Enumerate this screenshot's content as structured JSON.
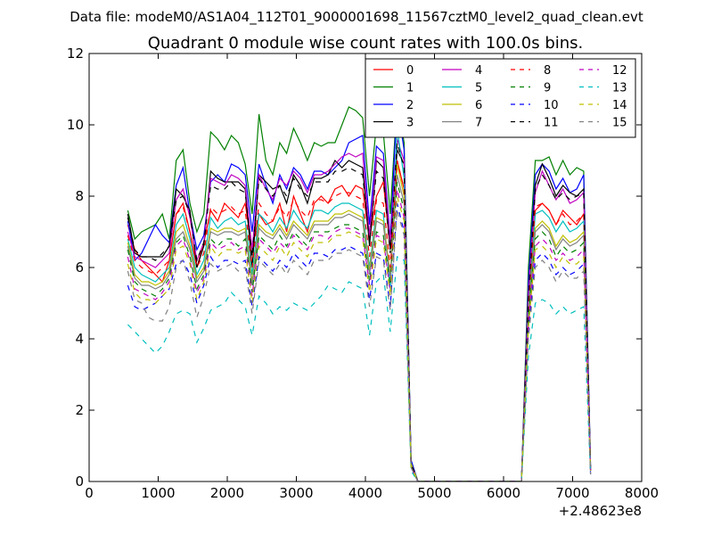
{
  "figure": {
    "suptitle": "Data file: modeM0/AS1A04_112T01_9000001698_11567cztM0_level2_quad_clean.evt"
  },
  "chart_data": {
    "type": "line",
    "title": "Quadrant 0 module wise count rates with 100.0s bins.",
    "xlabel": "",
    "ylabel": "",
    "x_offset_label": "+2.48623e8",
    "xlim": [
      0,
      8000
    ],
    "ylim": [
      0,
      12
    ],
    "x_ticks": [
      0,
      1000,
      2000,
      3000,
      4000,
      5000,
      6000,
      7000,
      8000
    ],
    "y_ticks": [
      0,
      2,
      4,
      6,
      8,
      10,
      12
    ],
    "grid": false,
    "legend": {
      "placement": "top-right",
      "ncol": 4
    },
    "x": [
      560,
      660,
      760,
      860,
      960,
      1060,
      1160,
      1260,
      1360,
      1460,
      1560,
      1660,
      1760,
      1860,
      1960,
      2060,
      2160,
      2260,
      2360,
      2460,
      2560,
      2660,
      2760,
      2860,
      2960,
      3060,
      3160,
      3260,
      3360,
      3460,
      3560,
      3660,
      3760,
      3860,
      3960,
      4060,
      4160,
      4260,
      4360,
      4460,
      4560,
      4660,
      4760,
      4860,
      4960,
      5060,
      5160,
      5260,
      5360,
      5460,
      5560,
      5660,
      5760,
      5860,
      5960,
      6060,
      6160,
      6260,
      6360,
      6460,
      6560,
      6660,
      6760,
      6860,
      6960,
      7060,
      7160,
      7260
    ],
    "series": [
      {
        "name": "0",
        "color": "#ff0000",
        "dash": "solid",
        "values": [
          7.2,
          6.5,
          6.2,
          6.0,
          5.8,
          5.6,
          6.2,
          7.5,
          7.8,
          7.0,
          6.0,
          6.7,
          7.6,
          7.3,
          7.8,
          7.6,
          7.4,
          7.8,
          6.5,
          7.5,
          7.2,
          7.3,
          7.8,
          7.0,
          8.0,
          7.5,
          7.0,
          7.8,
          8.0,
          7.8,
          8.2,
          8.3,
          8.0,
          8.3,
          8.2,
          6.8,
          8.0,
          8.4,
          6.5,
          9.0,
          8.2,
          0.5,
          0.0,
          0.0,
          0.0,
          0.0,
          0.0,
          0.0,
          0.0,
          0.0,
          0.0,
          0.0,
          0.0,
          0.0,
          0.0,
          0.0,
          0.0,
          0.0,
          5.0,
          7.6,
          7.8,
          7.6,
          7.2,
          7.6,
          7.4,
          7.2,
          7.5,
          0.3
        ]
      },
      {
        "name": "1",
        "color": "#008000",
        "dash": "solid",
        "values": [
          7.6,
          6.8,
          7.0,
          7.1,
          7.2,
          7.5,
          6.8,
          9.0,
          9.3,
          7.8,
          7.0,
          7.5,
          9.8,
          9.6,
          9.3,
          9.7,
          9.5,
          8.9,
          7.5,
          10.3,
          9.0,
          8.6,
          9.5,
          9.2,
          9.9,
          9.5,
          9.0,
          9.5,
          9.4,
          9.5,
          9.5,
          10.0,
          10.5,
          10.4,
          10.2,
          8.0,
          10.0,
          9.8,
          7.5,
          10.7,
          9.5,
          0.6,
          0.0,
          0.0,
          0.0,
          0.0,
          0.0,
          0.0,
          0.0,
          0.0,
          0.0,
          0.0,
          0.0,
          0.0,
          0.0,
          0.0,
          0.0,
          0.0,
          6.0,
          9.0,
          9.0,
          9.1,
          8.6,
          9.0,
          8.6,
          8.8,
          8.7,
          0.4
        ]
      },
      {
        "name": "2",
        "color": "#0000ff",
        "dash": "solid",
        "values": [
          7.3,
          6.2,
          6.4,
          6.8,
          7.2,
          6.9,
          6.7,
          8.3,
          8.8,
          7.5,
          6.5,
          6.9,
          8.4,
          8.6,
          8.4,
          8.9,
          8.8,
          8.6,
          7.0,
          8.9,
          8.3,
          7.8,
          8.6,
          8.2,
          8.8,
          8.6,
          8.2,
          8.7,
          8.7,
          8.6,
          8.8,
          9.0,
          9.5,
          9.6,
          9.7,
          7.2,
          9.4,
          9.2,
          6.8,
          10.6,
          9.3,
          0.6,
          0.0,
          0.0,
          0.0,
          0.0,
          0.0,
          0.0,
          0.0,
          0.0,
          0.0,
          0.0,
          0.0,
          0.0,
          0.0,
          0.0,
          0.0,
          0.0,
          5.6,
          8.6,
          8.9,
          8.7,
          8.2,
          8.5,
          8.1,
          8.2,
          8.6,
          0.4
        ]
      },
      {
        "name": "3",
        "color": "#000000",
        "dash": "solid",
        "values": [
          7.5,
          6.4,
          6.3,
          6.3,
          6.3,
          6.3,
          6.6,
          8.2,
          8.0,
          7.6,
          6.0,
          6.6,
          8.7,
          8.5,
          8.4,
          8.4,
          8.4,
          8.2,
          6.0,
          8.6,
          8.4,
          8.2,
          8.3,
          7.8,
          8.6,
          8.3,
          7.8,
          8.5,
          8.5,
          8.6,
          9.0,
          8.8,
          9.0,
          8.9,
          8.8,
          6.6,
          9.0,
          8.8,
          6.5,
          9.3,
          8.9,
          0.5,
          0.0,
          0.0,
          0.0,
          0.0,
          0.0,
          0.0,
          0.0,
          0.0,
          0.0,
          0.0,
          0.0,
          0.0,
          0.0,
          0.0,
          0.0,
          0.0,
          5.2,
          8.3,
          8.9,
          8.5,
          8.0,
          8.3,
          8.1,
          8.0,
          8.2,
          0.3
        ]
      },
      {
        "name": "4",
        "color": "#c000c0",
        "dash": "solid",
        "values": [
          7.0,
          6.3,
          6.2,
          6.1,
          6.0,
          6.2,
          6.4,
          7.9,
          8.2,
          7.4,
          6.2,
          6.7,
          8.5,
          8.4,
          8.3,
          8.6,
          8.5,
          8.3,
          6.5,
          8.6,
          8.2,
          7.9,
          8.5,
          8.3,
          8.7,
          8.5,
          8.1,
          8.6,
          8.6,
          8.7,
          8.9,
          9.1,
          9.2,
          9.1,
          9.2,
          6.9,
          9.1,
          9.0,
          6.7,
          9.6,
          9.0,
          0.5,
          0.0,
          0.0,
          0.0,
          0.0,
          0.0,
          0.0,
          0.0,
          0.0,
          0.0,
          0.0,
          0.0,
          0.0,
          0.0,
          0.0,
          0.0,
          0.0,
          5.3,
          8.1,
          8.7,
          8.3,
          7.9,
          8.2,
          7.8,
          7.9,
          8.1,
          0.3
        ]
      },
      {
        "name": "5",
        "color": "#00bfbf",
        "dash": "solid",
        "values": [
          6.8,
          6.0,
          5.8,
          5.7,
          5.6,
          5.8,
          6.0,
          7.2,
          7.5,
          6.8,
          5.8,
          6.2,
          7.4,
          7.1,
          7.3,
          7.4,
          7.2,
          7.3,
          5.8,
          7.5,
          7.3,
          7.0,
          7.4,
          7.1,
          7.6,
          7.3,
          7.1,
          7.6,
          7.6,
          7.5,
          7.7,
          7.8,
          7.8,
          7.7,
          7.6,
          6.0,
          7.6,
          7.5,
          5.4,
          9.9,
          8.5,
          0.5,
          0.0,
          0.0,
          0.0,
          0.0,
          0.0,
          0.0,
          0.0,
          0.0,
          0.0,
          0.0,
          0.0,
          0.0,
          0.0,
          0.0,
          0.0,
          0.0,
          4.8,
          7.5,
          7.6,
          7.4,
          7.0,
          7.3,
          7.0,
          7.1,
          7.3,
          0.3
        ]
      },
      {
        "name": "6",
        "color": "#bfbf00",
        "dash": "solid",
        "values": [
          6.7,
          5.8,
          5.6,
          5.6,
          5.5,
          5.6,
          5.9,
          7.0,
          7.2,
          6.6,
          5.7,
          6.0,
          7.1,
          7.0,
          7.1,
          7.1,
          7.0,
          7.1,
          5.6,
          7.2,
          7.0,
          6.9,
          7.2,
          6.9,
          7.3,
          7.1,
          6.9,
          7.3,
          7.3,
          7.3,
          7.5,
          7.5,
          7.6,
          7.5,
          7.4,
          5.9,
          7.4,
          7.3,
          5.8,
          8.9,
          8.0,
          0.5,
          0.0,
          0.0,
          0.0,
          0.0,
          0.0,
          0.0,
          0.0,
          0.0,
          0.0,
          0.0,
          0.0,
          0.0,
          0.0,
          0.0,
          0.0,
          0.0,
          4.7,
          7.1,
          7.3,
          7.1,
          6.6,
          6.9,
          6.7,
          6.8,
          7.0,
          0.3
        ]
      },
      {
        "name": "7",
        "color": "#808080",
        "dash": "solid",
        "values": [
          6.6,
          5.7,
          5.5,
          5.5,
          5.4,
          5.5,
          5.8,
          6.8,
          7.0,
          6.5,
          5.6,
          5.9,
          7.0,
          6.9,
          7.0,
          7.0,
          6.9,
          7.0,
          5.5,
          7.1,
          6.9,
          6.8,
          7.1,
          6.8,
          7.2,
          7.0,
          6.8,
          7.2,
          7.2,
          7.2,
          7.4,
          7.4,
          7.5,
          7.4,
          7.3,
          5.8,
          7.3,
          7.2,
          5.7,
          8.6,
          7.8,
          0.4,
          0.0,
          0.0,
          0.0,
          0.0,
          0.0,
          0.0,
          0.0,
          0.0,
          0.0,
          0.0,
          0.0,
          0.0,
          0.0,
          0.0,
          0.0,
          0.0,
          4.6,
          7.0,
          7.2,
          7.0,
          6.5,
          6.8,
          6.6,
          6.7,
          6.9,
          0.3
        ]
      },
      {
        "name": "8",
        "color": "#ff0000",
        "dash": "dashed",
        "values": [
          6.9,
          6.2,
          6.0,
          5.9,
          5.8,
          6.0,
          6.2,
          7.5,
          7.7,
          7.0,
          6.0,
          6.4,
          7.7,
          7.5,
          7.6,
          7.7,
          7.5,
          7.6,
          6.0,
          7.8,
          7.5,
          7.3,
          7.7,
          7.4,
          7.9,
          7.6,
          7.4,
          7.9,
          7.9,
          7.8,
          8.0,
          8.1,
          8.1,
          8.0,
          7.9,
          6.3,
          7.9,
          7.8,
          6.0,
          9.0,
          8.2,
          0.5,
          0.0,
          0.0,
          0.0,
          0.0,
          0.0,
          0.0,
          0.0,
          0.0,
          0.0,
          0.0,
          0.0,
          0.0,
          0.0,
          0.0,
          0.0,
          0.0,
          4.9,
          7.7,
          7.8,
          7.6,
          7.2,
          7.5,
          7.2,
          7.3,
          7.5,
          0.3
        ]
      },
      {
        "name": "9",
        "color": "#008000",
        "dash": "dashed",
        "values": [
          6.5,
          5.6,
          5.4,
          5.3,
          5.2,
          5.4,
          5.7,
          6.7,
          6.9,
          6.3,
          5.4,
          5.8,
          6.8,
          6.6,
          6.8,
          6.8,
          6.6,
          6.8,
          5.3,
          6.9,
          6.7,
          6.5,
          6.9,
          6.6,
          7.0,
          6.8,
          6.6,
          7.0,
          7.0,
          7.0,
          7.1,
          7.2,
          7.2,
          7.1,
          7.0,
          5.6,
          7.0,
          6.9,
          5.5,
          8.4,
          7.6,
          0.4,
          0.0,
          0.0,
          0.0,
          0.0,
          0.0,
          0.0,
          0.0,
          0.0,
          0.0,
          0.0,
          0.0,
          0.0,
          0.0,
          0.0,
          0.0,
          0.0,
          4.5,
          6.8,
          7.0,
          6.8,
          6.3,
          6.6,
          6.4,
          6.5,
          6.7,
          0.3
        ]
      },
      {
        "name": "10",
        "color": "#0000ff",
        "dash": "dashed",
        "values": [
          5.5,
          4.9,
          4.8,
          4.9,
          5.0,
          5.2,
          5.4,
          6.1,
          6.2,
          5.8,
          5.0,
          5.5,
          6.3,
          6.0,
          6.2,
          6.2,
          6.1,
          6.2,
          4.9,
          6.3,
          6.1,
          5.9,
          6.2,
          6.0,
          6.4,
          6.2,
          6.0,
          6.4,
          6.4,
          6.3,
          6.5,
          6.5,
          6.6,
          6.5,
          6.4,
          5.1,
          6.4,
          6.3,
          4.9,
          7.8,
          7.0,
          0.4,
          0.0,
          0.0,
          0.0,
          0.0,
          0.0,
          0.0,
          0.0,
          0.0,
          0.0,
          0.0,
          0.0,
          0.0,
          0.0,
          0.0,
          0.0,
          0.0,
          4.2,
          6.2,
          6.4,
          6.2,
          5.8,
          6.0,
          5.8,
          5.9,
          6.1,
          0.2
        ]
      },
      {
        "name": "11",
        "color": "#000000",
        "dash": "dashed",
        "values": [
          7.4,
          6.5,
          6.3,
          6.3,
          6.2,
          6.4,
          6.6,
          7.9,
          8.0,
          7.5,
          6.2,
          6.7,
          8.3,
          8.2,
          8.2,
          8.4,
          8.2,
          8.1,
          6.3,
          8.5,
          8.2,
          8.0,
          8.3,
          8.0,
          8.5,
          8.2,
          8.0,
          8.4,
          8.4,
          8.4,
          8.7,
          8.7,
          8.8,
          8.7,
          8.6,
          6.7,
          8.7,
          8.5,
          6.4,
          9.5,
          8.8,
          0.5,
          0.0,
          0.0,
          0.0,
          0.0,
          0.0,
          0.0,
          0.0,
          0.0,
          0.0,
          0.0,
          0.0,
          0.0,
          0.0,
          0.0,
          0.0,
          0.0,
          5.1,
          8.2,
          8.6,
          8.3,
          7.9,
          8.1,
          7.9,
          8.0,
          8.1,
          0.3
        ]
      },
      {
        "name": "12",
        "color": "#c000c0",
        "dash": "dashed",
        "values": [
          6.3,
          5.4,
          5.3,
          5.2,
          5.1,
          5.3,
          5.6,
          6.6,
          6.8,
          6.2,
          5.3,
          5.7,
          6.7,
          6.5,
          6.6,
          6.7,
          6.5,
          6.6,
          5.2,
          6.8,
          6.6,
          6.4,
          6.7,
          6.5,
          6.9,
          6.7,
          6.5,
          6.9,
          6.9,
          6.8,
          7.0,
          7.1,
          7.1,
          7.0,
          6.9,
          5.5,
          6.9,
          6.8,
          5.3,
          8.2,
          7.4,
          0.4,
          0.0,
          0.0,
          0.0,
          0.0,
          0.0,
          0.0,
          0.0,
          0.0,
          0.0,
          0.0,
          0.0,
          0.0,
          0.0,
          0.0,
          0.0,
          0.0,
          4.4,
          6.6,
          6.8,
          6.6,
          6.2,
          6.4,
          6.2,
          6.3,
          6.5,
          0.3
        ]
      },
      {
        "name": "13",
        "color": "#00bfbf",
        "dash": "dashed",
        "values": [
          4.4,
          4.2,
          4.0,
          3.8,
          3.6,
          3.8,
          4.2,
          4.7,
          4.8,
          4.7,
          3.9,
          4.3,
          4.8,
          4.9,
          5.0,
          5.3,
          5.1,
          4.9,
          4.1,
          5.2,
          5.0,
          4.7,
          4.9,
          4.8,
          5.0,
          4.9,
          4.8,
          5.0,
          5.2,
          5.5,
          5.4,
          5.3,
          5.6,
          5.5,
          5.4,
          4.1,
          5.6,
          5.8,
          4.2,
          6.3,
          6.2,
          0.3,
          0.0,
          0.0,
          0.0,
          0.0,
          0.0,
          0.0,
          0.0,
          0.0,
          0.0,
          0.0,
          0.0,
          0.0,
          0.0,
          0.0,
          0.0,
          0.0,
          3.5,
          5.0,
          5.1,
          5.0,
          4.7,
          4.9,
          4.7,
          4.8,
          4.9,
          0.2
        ]
      },
      {
        "name": "14",
        "color": "#bfbf00",
        "dash": "dashed",
        "values": [
          6.1,
          5.3,
          5.1,
          5.1,
          5.0,
          5.2,
          5.4,
          6.5,
          6.6,
          6.1,
          5.1,
          5.6,
          6.6,
          6.3,
          6.5,
          6.5,
          6.4,
          6.5,
          5.0,
          6.6,
          6.4,
          6.2,
          6.6,
          6.3,
          6.7,
          6.5,
          6.3,
          6.7,
          6.7,
          6.7,
          6.9,
          6.9,
          7.0,
          6.9,
          6.8,
          5.3,
          6.8,
          6.7,
          5.2,
          8.0,
          7.3,
          0.4,
          0.0,
          0.0,
          0.0,
          0.0,
          0.0,
          0.0,
          0.0,
          0.0,
          0.0,
          0.0,
          0.0,
          0.0,
          0.0,
          0.0,
          0.0,
          0.0,
          4.3,
          6.5,
          6.6,
          6.4,
          6.0,
          6.3,
          6.1,
          6.1,
          6.3,
          0.3
        ]
      },
      {
        "name": "15",
        "color": "#808080",
        "dash": "dashed",
        "values": [
          5.9,
          5.1,
          5.0,
          4.6,
          4.5,
          4.5,
          4.9,
          6.0,
          6.2,
          5.6,
          4.6,
          5.2,
          6.1,
          5.9,
          6.0,
          6.1,
          5.9,
          6.0,
          4.7,
          6.2,
          6.0,
          5.8,
          6.1,
          5.8,
          6.2,
          6.0,
          5.8,
          6.2,
          6.2,
          6.2,
          6.4,
          6.4,
          6.5,
          6.4,
          6.3,
          4.9,
          6.3,
          6.2,
          4.8,
          7.6,
          6.9,
          0.4,
          0.0,
          0.0,
          0.0,
          0.0,
          0.0,
          0.0,
          0.0,
          0.0,
          0.0,
          0.0,
          0.0,
          0.0,
          0.0,
          0.0,
          0.0,
          0.0,
          4.0,
          6.0,
          6.2,
          6.0,
          5.6,
          5.9,
          5.7,
          5.7,
          5.9,
          0.2
        ]
      }
    ]
  }
}
